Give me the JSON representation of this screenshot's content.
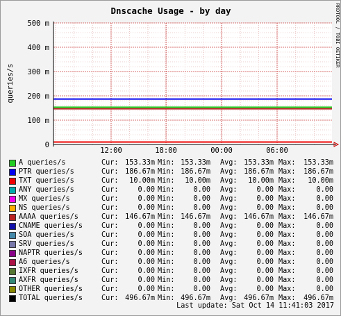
{
  "chart_data": {
    "type": "line",
    "title": "Dnscache Usage - by day",
    "ylabel": "queries/s",
    "side_label": "RRDTOOL / TOBI OETIKER",
    "ylim": [
      0,
      500
    ],
    "y_ticks": [
      {
        "v": 0,
        "label": "0"
      },
      {
        "v": 100,
        "label": "100 m"
      },
      {
        "v": 200,
        "label": "200 m"
      },
      {
        "v": 300,
        "label": "300 m"
      },
      {
        "v": 400,
        "label": "400 m"
      },
      {
        "v": 500,
        "label": "500 m"
      }
    ],
    "x_ticks": [
      "12:00",
      "18:00",
      "00:00",
      "06:00"
    ],
    "grid": true,
    "series": [
      {
        "name": "A queries/s",
        "color": "#22cc22",
        "values": [
          153.33
        ],
        "cur": "153.33m",
        "min": "153.33m",
        "avg": "153.33m",
        "max": "153.33m"
      },
      {
        "name": "PTR queries/s",
        "color": "#0000ee",
        "values": [
          186.67
        ],
        "cur": "186.67m",
        "min": "186.67m",
        "avg": "186.67m",
        "max": "186.67m"
      },
      {
        "name": "TXT queries/s",
        "color": "#ee0000",
        "values": [
          10.0
        ],
        "cur": "10.00m",
        "min": "10.00m",
        "avg": "10.00m",
        "max": "10.00m"
      },
      {
        "name": "ANY queries/s",
        "color": "#00aaaa",
        "values": [
          0
        ],
        "cur": "0.00",
        "min": "0.00",
        "avg": "0.00",
        "max": "0.00"
      },
      {
        "name": "MX queries/s",
        "color": "#ee00ee",
        "values": [
          0
        ],
        "cur": "0.00",
        "min": "0.00",
        "avg": "0.00",
        "max": "0.00"
      },
      {
        "name": "NS queries/s",
        "color": "#ffaa00",
        "values": [
          0
        ],
        "cur": "0.00",
        "min": "0.00",
        "avg": "0.00",
        "max": "0.00"
      },
      {
        "name": "AAAA queries/s",
        "color": "#bb2222",
        "values": [
          146.67
        ],
        "cur": "146.67m",
        "min": "146.67m",
        "avg": "146.67m",
        "max": "146.67m"
      },
      {
        "name": "CNAME queries/s",
        "color": "#1111aa",
        "values": [
          0
        ],
        "cur": "0.00",
        "min": "0.00",
        "avg": "0.00",
        "max": "0.00"
      },
      {
        "name": "SOA queries/s",
        "color": "#4488aa",
        "values": [
          0
        ],
        "cur": "0.00",
        "min": "0.00",
        "avg": "0.00",
        "max": "0.00"
      },
      {
        "name": "SRV queries/s",
        "color": "#7777aa",
        "values": [
          0
        ],
        "cur": "0.00",
        "min": "0.00",
        "avg": "0.00",
        "max": "0.00"
      },
      {
        "name": "NAPTR queries/s",
        "color": "#880088",
        "values": [
          0
        ],
        "cur": "0.00",
        "min": "0.00",
        "avg": "0.00",
        "max": "0.00"
      },
      {
        "name": "A6 queries/s",
        "color": "#aa1144",
        "values": [
          0
        ],
        "cur": "0.00",
        "min": "0.00",
        "avg": "0.00",
        "max": "0.00"
      },
      {
        "name": "IXFR queries/s",
        "color": "#557733",
        "values": [
          0
        ],
        "cur": "0.00",
        "min": "0.00",
        "avg": "0.00",
        "max": "0.00"
      },
      {
        "name": "AXFR queries/s",
        "color": "#338877",
        "values": [
          0
        ],
        "cur": "0.00",
        "min": "0.00",
        "avg": "0.00",
        "max": "0.00"
      },
      {
        "name": "OTHER queries/s",
        "color": "#888800",
        "values": [
          0
        ],
        "cur": "0.00",
        "min": "0.00",
        "avg": "0.00",
        "max": "0.00"
      },
      {
        "name": "TOTAL queries/s",
        "color": "#000000",
        "values": [
          496.67
        ],
        "cur": "496.67m",
        "min": "496.67m",
        "avg": "496.67m",
        "max": "496.67m"
      }
    ],
    "legend_labels": {
      "cur": "Cur:",
      "min": "Min:",
      "avg": "Avg:",
      "max": "Max:"
    },
    "last_update": "Last update: Sat Oct 14 11:41:03 2017"
  }
}
